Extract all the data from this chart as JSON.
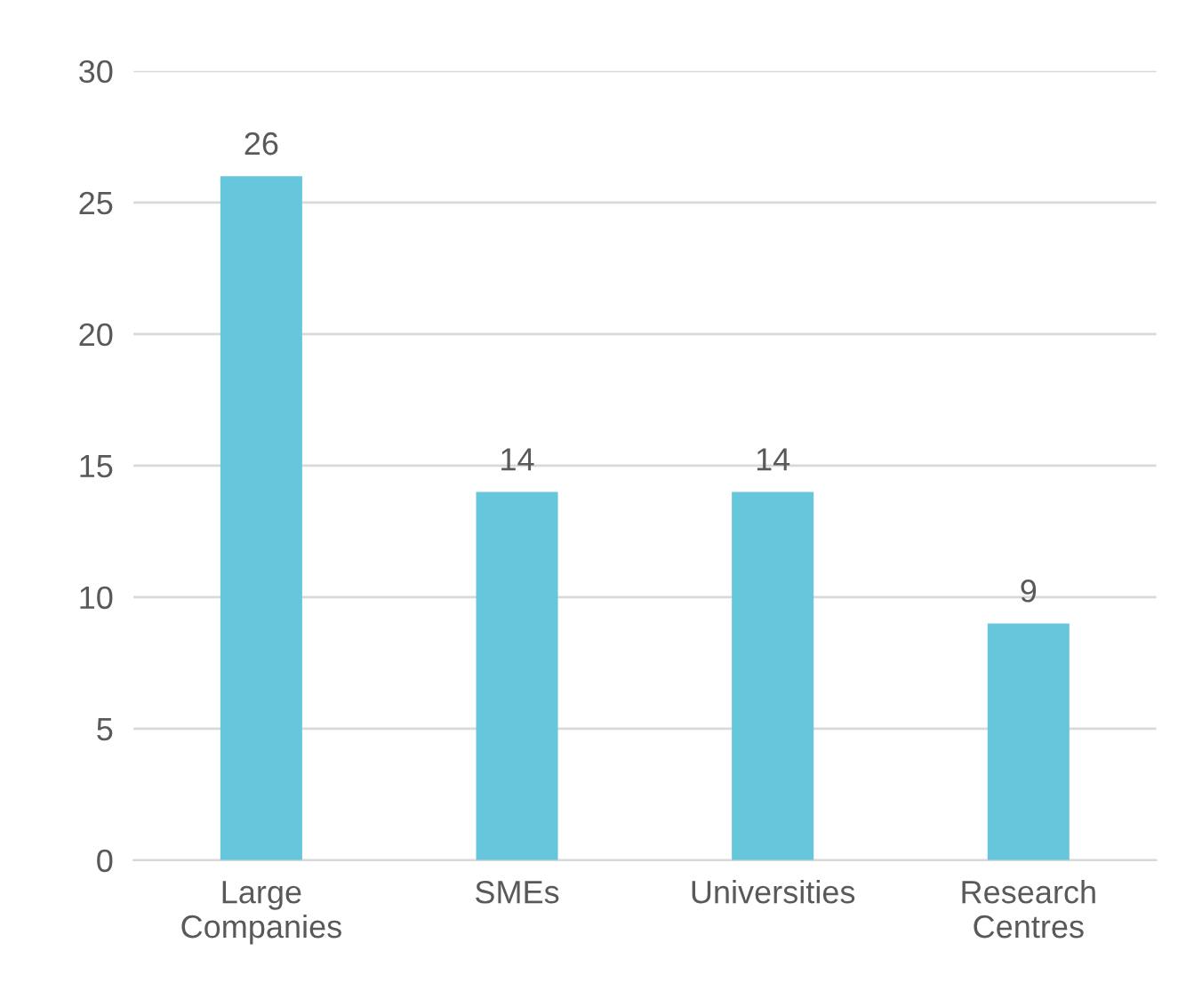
{
  "chart_data": {
    "type": "bar",
    "categories": [
      "Large\nCompanies",
      "SMEs",
      "Universities",
      "Research\nCentres"
    ],
    "values": [
      26,
      14,
      14,
      9
    ],
    "color": "#65c6dc",
    "ylim": [
      0,
      30
    ],
    "yticks": [
      0,
      5,
      10,
      15,
      20,
      25,
      30
    ],
    "grid": "y",
    "data_labels": true,
    "legend": false
  }
}
